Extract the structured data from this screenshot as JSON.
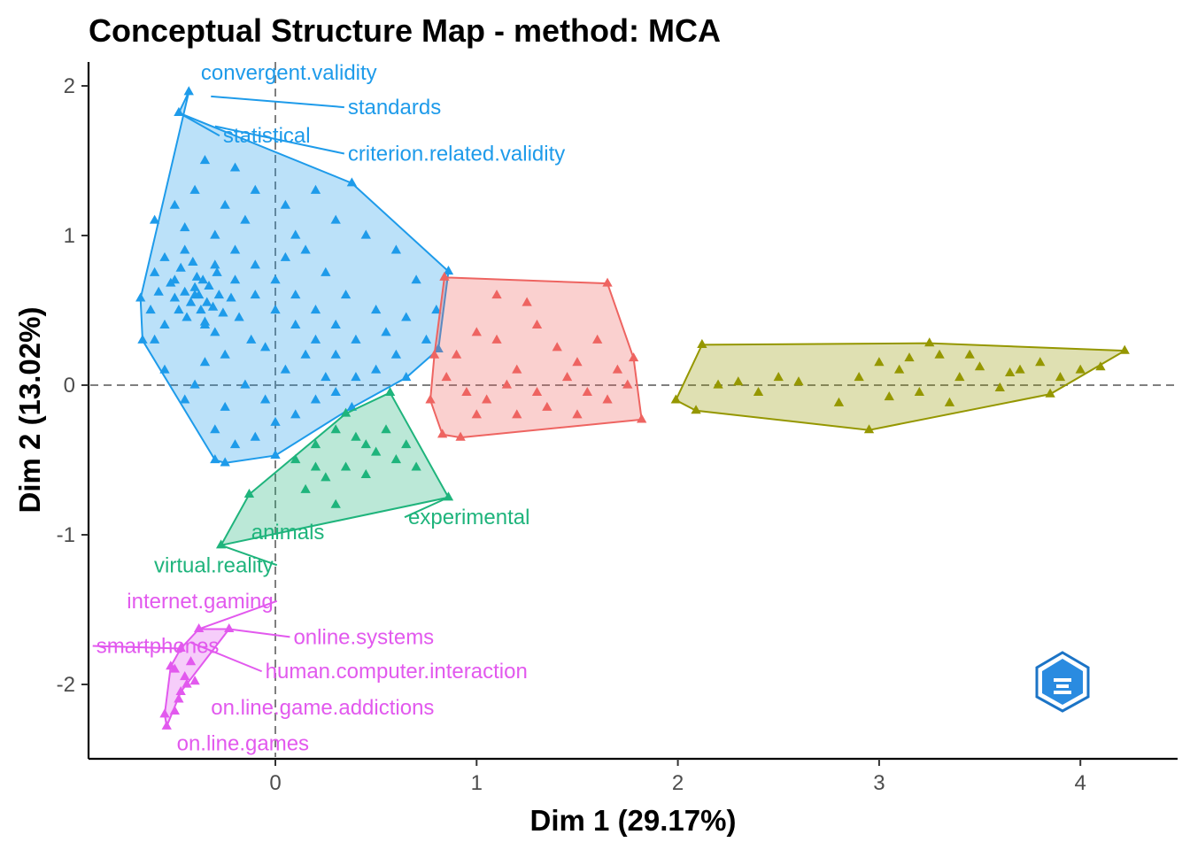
{
  "chart_data": {
    "type": "scatter",
    "title": "Conceptual Structure Map - method: MCA",
    "xlabel": "Dim 1 (29.17%)",
    "ylabel": "Dim 2 (13.02%)",
    "xlim": [
      -0.92,
      4.5
    ],
    "ylim": [
      -2.48,
      2.2
    ],
    "x_ticks": [
      0,
      1,
      2,
      3,
      4
    ],
    "y_ticks": [
      -2,
      -1,
      0,
      1,
      2
    ],
    "reference_lines": {
      "x": 0,
      "y": 0,
      "style": "dashed"
    },
    "grid": false,
    "legend": "none",
    "logo": "BIBLIOMETRIX",
    "clusters": [
      {
        "color": "#1E9BEA",
        "hull": [
          [
            -0.43,
            1.96
          ],
          [
            -0.48,
            1.82
          ],
          [
            0.38,
            1.35
          ],
          [
            0.86,
            0.76
          ],
          [
            0.81,
            0.24
          ],
          [
            0.65,
            0.05
          ],
          [
            0.38,
            -0.15
          ],
          [
            0,
            -0.47
          ],
          [
            -0.25,
            -0.52
          ],
          [
            -0.3,
            -0.5
          ],
          [
            -0.66,
            0.3
          ],
          [
            -0.67,
            0.58
          ]
        ],
        "label_points": [
          {
            "label": "convergent.validity",
            "x": -0.43,
            "y": 1.96
          },
          {
            "label": "standards",
            "x": -0.32,
            "y": 1.93
          },
          {
            "label": "statistical",
            "x": -0.48,
            "y": 1.82
          },
          {
            "label": "criterion.related.validity",
            "x": -0.3,
            "y": 1.73
          }
        ],
        "points": [
          [
            -0.6,
            1.1
          ],
          [
            -0.5,
            1.2
          ],
          [
            -0.4,
            1.3
          ],
          [
            -0.35,
            1.5
          ],
          [
            -0.2,
            1.45
          ],
          [
            -0.1,
            1.3
          ],
          [
            0.05,
            1.2
          ],
          [
            0.2,
            1.3
          ],
          [
            0.3,
            1.1
          ],
          [
            0.45,
            1.0
          ],
          [
            0.6,
            0.9
          ],
          [
            0.7,
            0.7
          ],
          [
            0.8,
            0.5
          ],
          [
            0.75,
            0.3
          ],
          [
            0.6,
            0.2
          ],
          [
            0.5,
            0.1
          ],
          [
            0.4,
            0.05
          ],
          [
            0.2,
            -0.1
          ],
          [
            0.1,
            -0.2
          ],
          [
            -0.1,
            -0.35
          ],
          [
            -0.2,
            -0.4
          ],
          [
            -0.3,
            -0.3
          ],
          [
            -0.45,
            -0.1
          ],
          [
            -0.55,
            0.1
          ],
          [
            -0.6,
            0.3
          ],
          [
            -0.62,
            0.5
          ],
          [
            -0.5,
            0.7
          ],
          [
            -0.45,
            0.9
          ],
          [
            -0.3,
            1.0
          ],
          [
            -0.2,
            0.9
          ],
          [
            -0.1,
            0.8
          ],
          [
            0.0,
            0.7
          ],
          [
            0.1,
            0.6
          ],
          [
            0.2,
            0.5
          ],
          [
            0.3,
            0.4
          ],
          [
            0.4,
            0.3
          ],
          [
            0.3,
            0.2
          ],
          [
            0.2,
            0.3
          ],
          [
            0.1,
            0.4
          ],
          [
            0.0,
            0.5
          ],
          [
            -0.1,
            0.6
          ],
          [
            -0.2,
            0.7
          ],
          [
            -0.3,
            0.8
          ],
          [
            -0.4,
            0.6
          ],
          [
            -0.35,
            0.4
          ],
          [
            -0.25,
            0.2
          ],
          [
            -0.15,
            0.0
          ],
          [
            -0.05,
            -0.1
          ],
          [
            0.05,
            0.1
          ],
          [
            0.15,
            0.2
          ],
          [
            -0.42,
            0.55
          ],
          [
            -0.4,
            0.65
          ],
          [
            -0.38,
            0.6
          ],
          [
            -0.36,
            0.7
          ],
          [
            -0.34,
            0.55
          ],
          [
            -0.45,
            0.62
          ],
          [
            -0.48,
            0.5
          ],
          [
            -0.44,
            0.45
          ],
          [
            -0.39,
            0.72
          ],
          [
            -0.33,
            0.66
          ],
          [
            -0.31,
            0.52
          ],
          [
            -0.28,
            0.6
          ],
          [
            -0.5,
            0.58
          ],
          [
            -0.52,
            0.68
          ],
          [
            -0.47,
            0.78
          ],
          [
            -0.41,
            0.82
          ],
          [
            -0.37,
            0.5
          ],
          [
            -0.35,
            0.42
          ],
          [
            -0.29,
            0.75
          ],
          [
            -0.26,
            0.48
          ],
          [
            -0.55,
            0.4
          ],
          [
            -0.58,
            0.62
          ],
          [
            -0.3,
            0.35
          ],
          [
            -0.22,
            0.58
          ],
          [
            -0.18,
            0.45
          ],
          [
            -0.12,
            0.3
          ],
          [
            0.05,
            0.85
          ],
          [
            0.25,
            0.75
          ],
          [
            0.35,
            0.6
          ],
          [
            0.5,
            0.5
          ],
          [
            0.55,
            0.35
          ],
          [
            0.65,
            0.45
          ],
          [
            -0.15,
            1.1
          ],
          [
            0.1,
            1.0
          ],
          [
            0.15,
            0.9
          ],
          [
            -0.25,
            1.2
          ],
          [
            -0.45,
            1.05
          ],
          [
            -0.55,
            0.85
          ],
          [
            -0.6,
            0.75
          ],
          [
            -0.05,
            0.25
          ],
          [
            0.25,
            0.05
          ],
          [
            -0.35,
            0.15
          ],
          [
            -0.4,
            0.0
          ],
          [
            -0.25,
            -0.15
          ],
          [
            0.0,
            -0.25
          ],
          [
            0.3,
            -0.05
          ]
        ]
      },
      {
        "color": "#EE6461",
        "hull": [
          [
            0.84,
            0.72
          ],
          [
            1.65,
            0.68
          ],
          [
            1.78,
            0.18
          ],
          [
            1.82,
            -0.23
          ],
          [
            0.92,
            -0.35
          ],
          [
            0.83,
            -0.33
          ],
          [
            0.77,
            -0.1
          ],
          [
            0.79,
            0.2
          ]
        ],
        "label_points": [],
        "points": [
          [
            0.9,
            0.2
          ],
          [
            1.0,
            0.35
          ],
          [
            1.1,
            0.3
          ],
          [
            1.2,
            0.1
          ],
          [
            1.3,
            0.4
          ],
          [
            1.4,
            0.25
          ],
          [
            1.5,
            0.15
          ],
          [
            1.6,
            0.3
          ],
          [
            1.7,
            0.1
          ],
          [
            1.75,
            0.0
          ],
          [
            1.65,
            -0.1
          ],
          [
            1.5,
            -0.2
          ],
          [
            1.35,
            -0.15
          ],
          [
            1.2,
            -0.2
          ],
          [
            1.05,
            -0.1
          ],
          [
            0.95,
            -0.05
          ],
          [
            0.85,
            0.05
          ],
          [
            1.1,
            0.6
          ],
          [
            1.25,
            0.55
          ],
          [
            1.45,
            0.05
          ],
          [
            1.55,
            -0.05
          ],
          [
            1.3,
            -0.05
          ],
          [
            1.15,
            0.0
          ],
          [
            1.0,
            -0.2
          ]
        ]
      },
      {
        "color": "#959700",
        "hull": [
          [
            2.12,
            0.27
          ],
          [
            3.25,
            0.28
          ],
          [
            4.22,
            0.23
          ],
          [
            3.85,
            -0.06
          ],
          [
            2.95,
            -0.3
          ],
          [
            2.09,
            -0.17
          ],
          [
            1.99,
            -0.1
          ]
        ],
        "label_points": [],
        "points": [
          [
            2.2,
            0.0
          ],
          [
            2.4,
            -0.05
          ],
          [
            2.6,
            0.02
          ],
          [
            2.8,
            -0.12
          ],
          [
            2.9,
            0.05
          ],
          [
            3.0,
            0.15
          ],
          [
            3.1,
            0.1
          ],
          [
            3.2,
            -0.05
          ],
          [
            3.3,
            0.2
          ],
          [
            3.4,
            0.05
          ],
          [
            3.5,
            0.12
          ],
          [
            3.6,
            -0.02
          ],
          [
            3.7,
            0.1
          ],
          [
            3.8,
            0.15
          ],
          [
            3.9,
            0.05
          ],
          [
            4.0,
            0.1
          ],
          [
            4.1,
            0.12
          ],
          [
            3.35,
            -0.12
          ],
          [
            3.05,
            -0.08
          ],
          [
            2.5,
            0.05
          ],
          [
            2.3,
            0.02
          ],
          [
            3.15,
            0.18
          ],
          [
            3.45,
            0.2
          ],
          [
            3.65,
            0.08
          ]
        ]
      },
      {
        "color": "#1FB47C",
        "hull": [
          [
            -0.27,
            -1.07
          ],
          [
            -0.13,
            -0.73
          ],
          [
            0.35,
            -0.19
          ],
          [
            0.57,
            -0.05
          ],
          [
            0.86,
            -0.75
          ]
        ],
        "label_points": [
          {
            "label": "experimental",
            "x": 0.86,
            "y": -0.75
          },
          {
            "label": "animals",
            "x": -0.13,
            "y": -0.73
          },
          {
            "label": "virtual.reality",
            "x": -0.27,
            "y": -1.07
          }
        ],
        "points": [
          [
            0.1,
            -0.5
          ],
          [
            0.2,
            -0.4
          ],
          [
            0.3,
            -0.3
          ],
          [
            0.4,
            -0.35
          ],
          [
            0.5,
            -0.45
          ],
          [
            0.6,
            -0.5
          ],
          [
            0.7,
            -0.55
          ],
          [
            0.45,
            -0.6
          ],
          [
            0.35,
            -0.55
          ],
          [
            0.25,
            -0.62
          ],
          [
            0.15,
            -0.7
          ],
          [
            0.3,
            -0.8
          ],
          [
            0.55,
            -0.3
          ],
          [
            0.65,
            -0.4
          ],
          [
            0.2,
            -0.55
          ],
          [
            0.45,
            -0.4
          ]
        ]
      },
      {
        "color": "#E259EE",
        "hull": [
          [
            -0.38,
            -1.63
          ],
          [
            -0.23,
            -1.63
          ],
          [
            -0.47,
            -2.05
          ],
          [
            -0.54,
            -2.28
          ],
          [
            -0.55,
            -2.2
          ],
          [
            -0.52,
            -1.88
          ],
          [
            -0.47,
            -1.76
          ]
        ],
        "label_points": [
          {
            "label": "internet.gaming",
            "x": -0.38,
            "y": -1.63
          },
          {
            "label": "online.systems",
            "x": -0.23,
            "y": -1.63
          },
          {
            "label": "smartphones",
            "x": -0.47,
            "y": -1.76
          },
          {
            "label": "human.computer.interaction",
            "x": -0.42,
            "y": -1.72
          },
          {
            "label": "on.line.game.addictions",
            "x": -0.35,
            "y": -2.1
          },
          {
            "label": "on.line.games",
            "x": -0.54,
            "y": -2.28
          }
        ],
        "points": [
          [
            -0.5,
            -1.9
          ],
          [
            -0.45,
            -1.95
          ],
          [
            -0.42,
            -1.85
          ],
          [
            -0.48,
            -2.1
          ],
          [
            -0.44,
            -2.0
          ],
          [
            -0.5,
            -2.18
          ],
          [
            -0.4,
            -1.98
          ]
        ]
      }
    ],
    "annotations": [
      {
        "text": "convergent.validity",
        "x": -0.37,
        "y": 2.04,
        "anchor": "start",
        "color": "#1E9BEA"
      },
      {
        "text": "standards",
        "x": 0.36,
        "y": 1.81,
        "anchor": "start",
        "color": "#1E9BEA"
      },
      {
        "text": "statistical",
        "x": -0.26,
        "y": 1.62,
        "anchor": "start",
        "color": "#1E9BEA"
      },
      {
        "text": "criterion.related.validity",
        "x": 0.36,
        "y": 1.5,
        "anchor": "start",
        "color": "#1E9BEA"
      },
      {
        "text": "experimental",
        "x": 0.66,
        "y": -0.93,
        "anchor": "start",
        "color": "#1FB47C"
      },
      {
        "text": "animals",
        "x": -0.12,
        "y": -1.03,
        "anchor": "start",
        "color": "#1FB47C"
      },
      {
        "text": "virtual.reality",
        "x": -0.01,
        "y": -1.25,
        "anchor": "end",
        "color": "#1FB47C"
      },
      {
        "text": "internet.gaming",
        "x": -0.01,
        "y": -1.49,
        "anchor": "end",
        "color": "#E259EE"
      },
      {
        "text": "online.systems",
        "x": 0.09,
        "y": -1.73,
        "anchor": "start",
        "color": "#E259EE"
      },
      {
        "text": "smartphones",
        "x": -0.89,
        "y": -1.79,
        "anchor": "start",
        "color": "#E259EE"
      },
      {
        "text": "human.computer.interaction",
        "x": -0.05,
        "y": -1.96,
        "anchor": "start",
        "color": "#E259EE"
      },
      {
        "text": "on.line.game.addictions",
        "x": -0.32,
        "y": -2.2,
        "anchor": "start",
        "color": "#E259EE"
      },
      {
        "text": "on.line.games",
        "x": -0.49,
        "y": -2.44,
        "anchor": "start",
        "color": "#E259EE"
      }
    ]
  }
}
